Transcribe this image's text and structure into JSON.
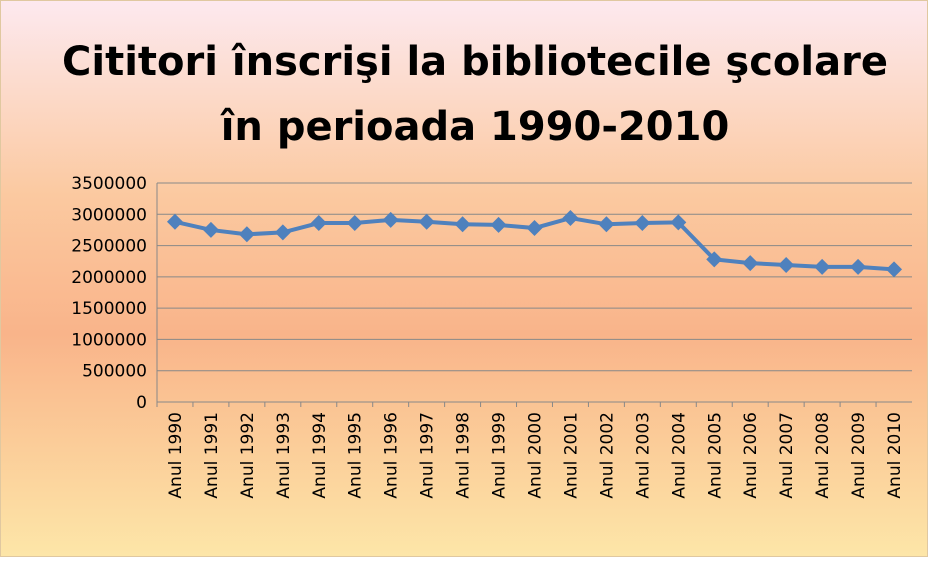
{
  "chart_data": {
    "type": "line",
    "title": [
      "Cititori înscrişi la bibliotecile şcolare",
      "în perioada 1990-2010"
    ],
    "categories": [
      "Anul 1990",
      "Anul 1991",
      "Anul 1992",
      "Anul 1993",
      "Anul 1994",
      "Anul 1995",
      "Anul 1996",
      "Anul 1997",
      "Anul 1998",
      "Anul 1999",
      "Anul 2000",
      "Anul 2001",
      "Anul 2002",
      "Anul 2003",
      "Anul 2004",
      "Anul 2005",
      "Anul 2006",
      "Anul 2007",
      "Anul 2008",
      "Anul 2009",
      "Anul 2010"
    ],
    "values": [
      2880000,
      2750000,
      2680000,
      2710000,
      2860000,
      2860000,
      2910000,
      2880000,
      2840000,
      2830000,
      2780000,
      2940000,
      2840000,
      2860000,
      2870000,
      2280000,
      2220000,
      2190000,
      2160000,
      2160000,
      2120000
    ],
    "color": "#4f81bd",
    "ylim": [
      0,
      3500000
    ],
    "yticks": [
      0,
      500000,
      1000000,
      1500000,
      2000000,
      2500000,
      3000000,
      3500000
    ],
    "grid": true
  }
}
